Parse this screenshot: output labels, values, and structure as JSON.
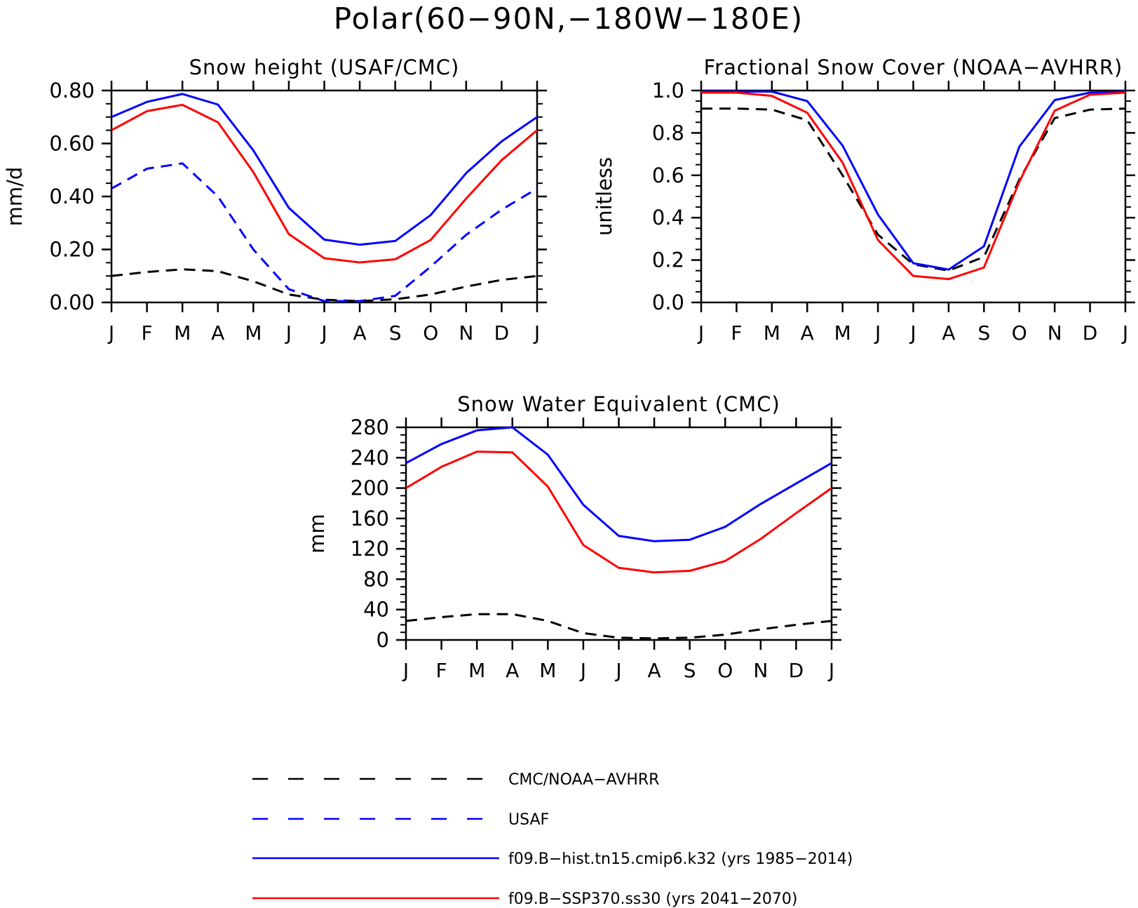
{
  "suptitle": "Polar(60−90N,−180W−180E)",
  "months": [
    "J",
    "F",
    "M",
    "A",
    "M",
    "J",
    "J",
    "A",
    "S",
    "O",
    "N",
    "D",
    "J"
  ],
  "chart_data": [
    {
      "type": "line",
      "title": "Snow height (USAF/CMC)",
      "ylabel": "mm/d",
      "ylim": [
        0,
        0.8
      ],
      "yticks": [
        0,
        0.2,
        0.4,
        0.6,
        0.8
      ],
      "ytick_labels": [
        "0.00",
        "0.20",
        "0.40",
        "0.60",
        "0.80"
      ],
      "categories": [
        "J",
        "F",
        "M",
        "A",
        "M",
        "J",
        "J",
        "A",
        "S",
        "O",
        "N",
        "D",
        "J"
      ],
      "series": [
        {
          "name": "CMC/NOAA−AVHRR",
          "color": "#000000",
          "dash": true,
          "values": [
            0.1,
            0.115,
            0.125,
            0.118,
            0.08,
            0.03,
            0.01,
            0.005,
            0.012,
            0.03,
            0.06,
            0.085,
            0.1
          ]
        },
        {
          "name": "USAF",
          "color": "#0000ff",
          "dash": true,
          "values": [
            0.43,
            0.505,
            0.525,
            0.4,
            0.2,
            0.05,
            0.005,
            0.005,
            0.025,
            0.135,
            0.255,
            0.35,
            0.43
          ]
        },
        {
          "name": "f09.B−hist.tn15.cmip6.k32 (yrs 1985−2014)",
          "color": "#0000ff",
          "dash": false,
          "values": [
            0.7,
            0.757,
            0.787,
            0.747,
            0.574,
            0.357,
            0.237,
            0.218,
            0.232,
            0.33,
            0.488,
            0.608,
            0.7
          ]
        },
        {
          "name": "f09.B−SSP370.ss30 (yrs 2041−2070)",
          "color": "#ff0000",
          "dash": false,
          "values": [
            0.65,
            0.722,
            0.746,
            0.68,
            0.492,
            0.258,
            0.167,
            0.151,
            0.163,
            0.236,
            0.392,
            0.537,
            0.65
          ]
        }
      ]
    },
    {
      "type": "line",
      "title": "Fractional Snow Cover (NOAA−AVHRR)",
      "ylabel": "unitless",
      "ylim": [
        0,
        1.0
      ],
      "yticks": [
        0,
        0.2,
        0.4,
        0.6,
        0.8,
        1.0
      ],
      "ytick_labels": [
        "0.0",
        "0.2",
        "0.4",
        "0.6",
        "0.8",
        "1.0"
      ],
      "categories": [
        "J",
        "F",
        "M",
        "A",
        "M",
        "J",
        "J",
        "A",
        "S",
        "O",
        "N",
        "D",
        "J"
      ],
      "series": [
        {
          "name": "CMC/NOAA−AVHRR",
          "color": "#000000",
          "dash": true,
          "values": [
            0.915,
            0.915,
            0.91,
            0.86,
            0.6,
            0.32,
            0.18,
            0.15,
            0.215,
            0.58,
            0.87,
            0.91,
            0.915
          ]
        },
        {
          "name": "f09.B−hist.tn15.cmip6.k32 (yrs 1985−2014)",
          "color": "#0000ff",
          "dash": false,
          "values": [
            0.995,
            0.995,
            0.995,
            0.95,
            0.74,
            0.415,
            0.185,
            0.155,
            0.265,
            0.735,
            0.955,
            0.99,
            0.995
          ]
        },
        {
          "name": "f09.B−SSP370.ss30 (yrs 2041−2070)",
          "color": "#ff0000",
          "dash": false,
          "values": [
            0.99,
            0.99,
            0.975,
            0.895,
            0.66,
            0.295,
            0.125,
            0.11,
            0.165,
            0.57,
            0.905,
            0.98,
            0.99
          ]
        }
      ]
    },
    {
      "type": "line",
      "title": "Snow Water Equivalent (CMC)",
      "ylabel": "mm",
      "ylim": [
        0,
        280
      ],
      "yticks": [
        0,
        40,
        80,
        120,
        160,
        200,
        240,
        280
      ],
      "ytick_labels": [
        "0",
        "40",
        "80",
        "120",
        "160",
        "200",
        "240",
        "280"
      ],
      "categories": [
        "J",
        "F",
        "M",
        "A",
        "M",
        "J",
        "J",
        "A",
        "S",
        "O",
        "N",
        "D",
        "J"
      ],
      "series": [
        {
          "name": "CMC/NOAA−AVHRR",
          "color": "#000000",
          "dash": true,
          "values": [
            25,
            30,
            34,
            34,
            25,
            9,
            3,
            2,
            3,
            7,
            14,
            20,
            25
          ]
        },
        {
          "name": "f09.B−hist.tn15.cmip6.k32 (yrs 1985−2014)",
          "color": "#0000ff",
          "dash": false,
          "values": [
            233,
            258,
            276,
            280,
            244,
            178,
            137,
            130,
            132,
            149,
            179,
            206,
            233
          ]
        },
        {
          "name": "f09.B−SSP370.ss30 (yrs 2041−2070)",
          "color": "#ff0000",
          "dash": false,
          "values": [
            200,
            228,
            248,
            247,
            202,
            125,
            95,
            89,
            91,
            104,
            133,
            167,
            200
          ]
        }
      ]
    }
  ],
  "legend": [
    {
      "label": "CMC/NOAA−AVHRR",
      "color": "#000000",
      "dash": true
    },
    {
      "label": "USAF",
      "color": "#0000ff",
      "dash": true
    },
    {
      "label": "f09.B−hist.tn15.cmip6.k32 (yrs 1985−2014)",
      "color": "#0000ff",
      "dash": false
    },
    {
      "label": "f09.B−SSP370.ss30 (yrs 2041−2070)",
      "color": "#ff0000",
      "dash": false
    }
  ]
}
